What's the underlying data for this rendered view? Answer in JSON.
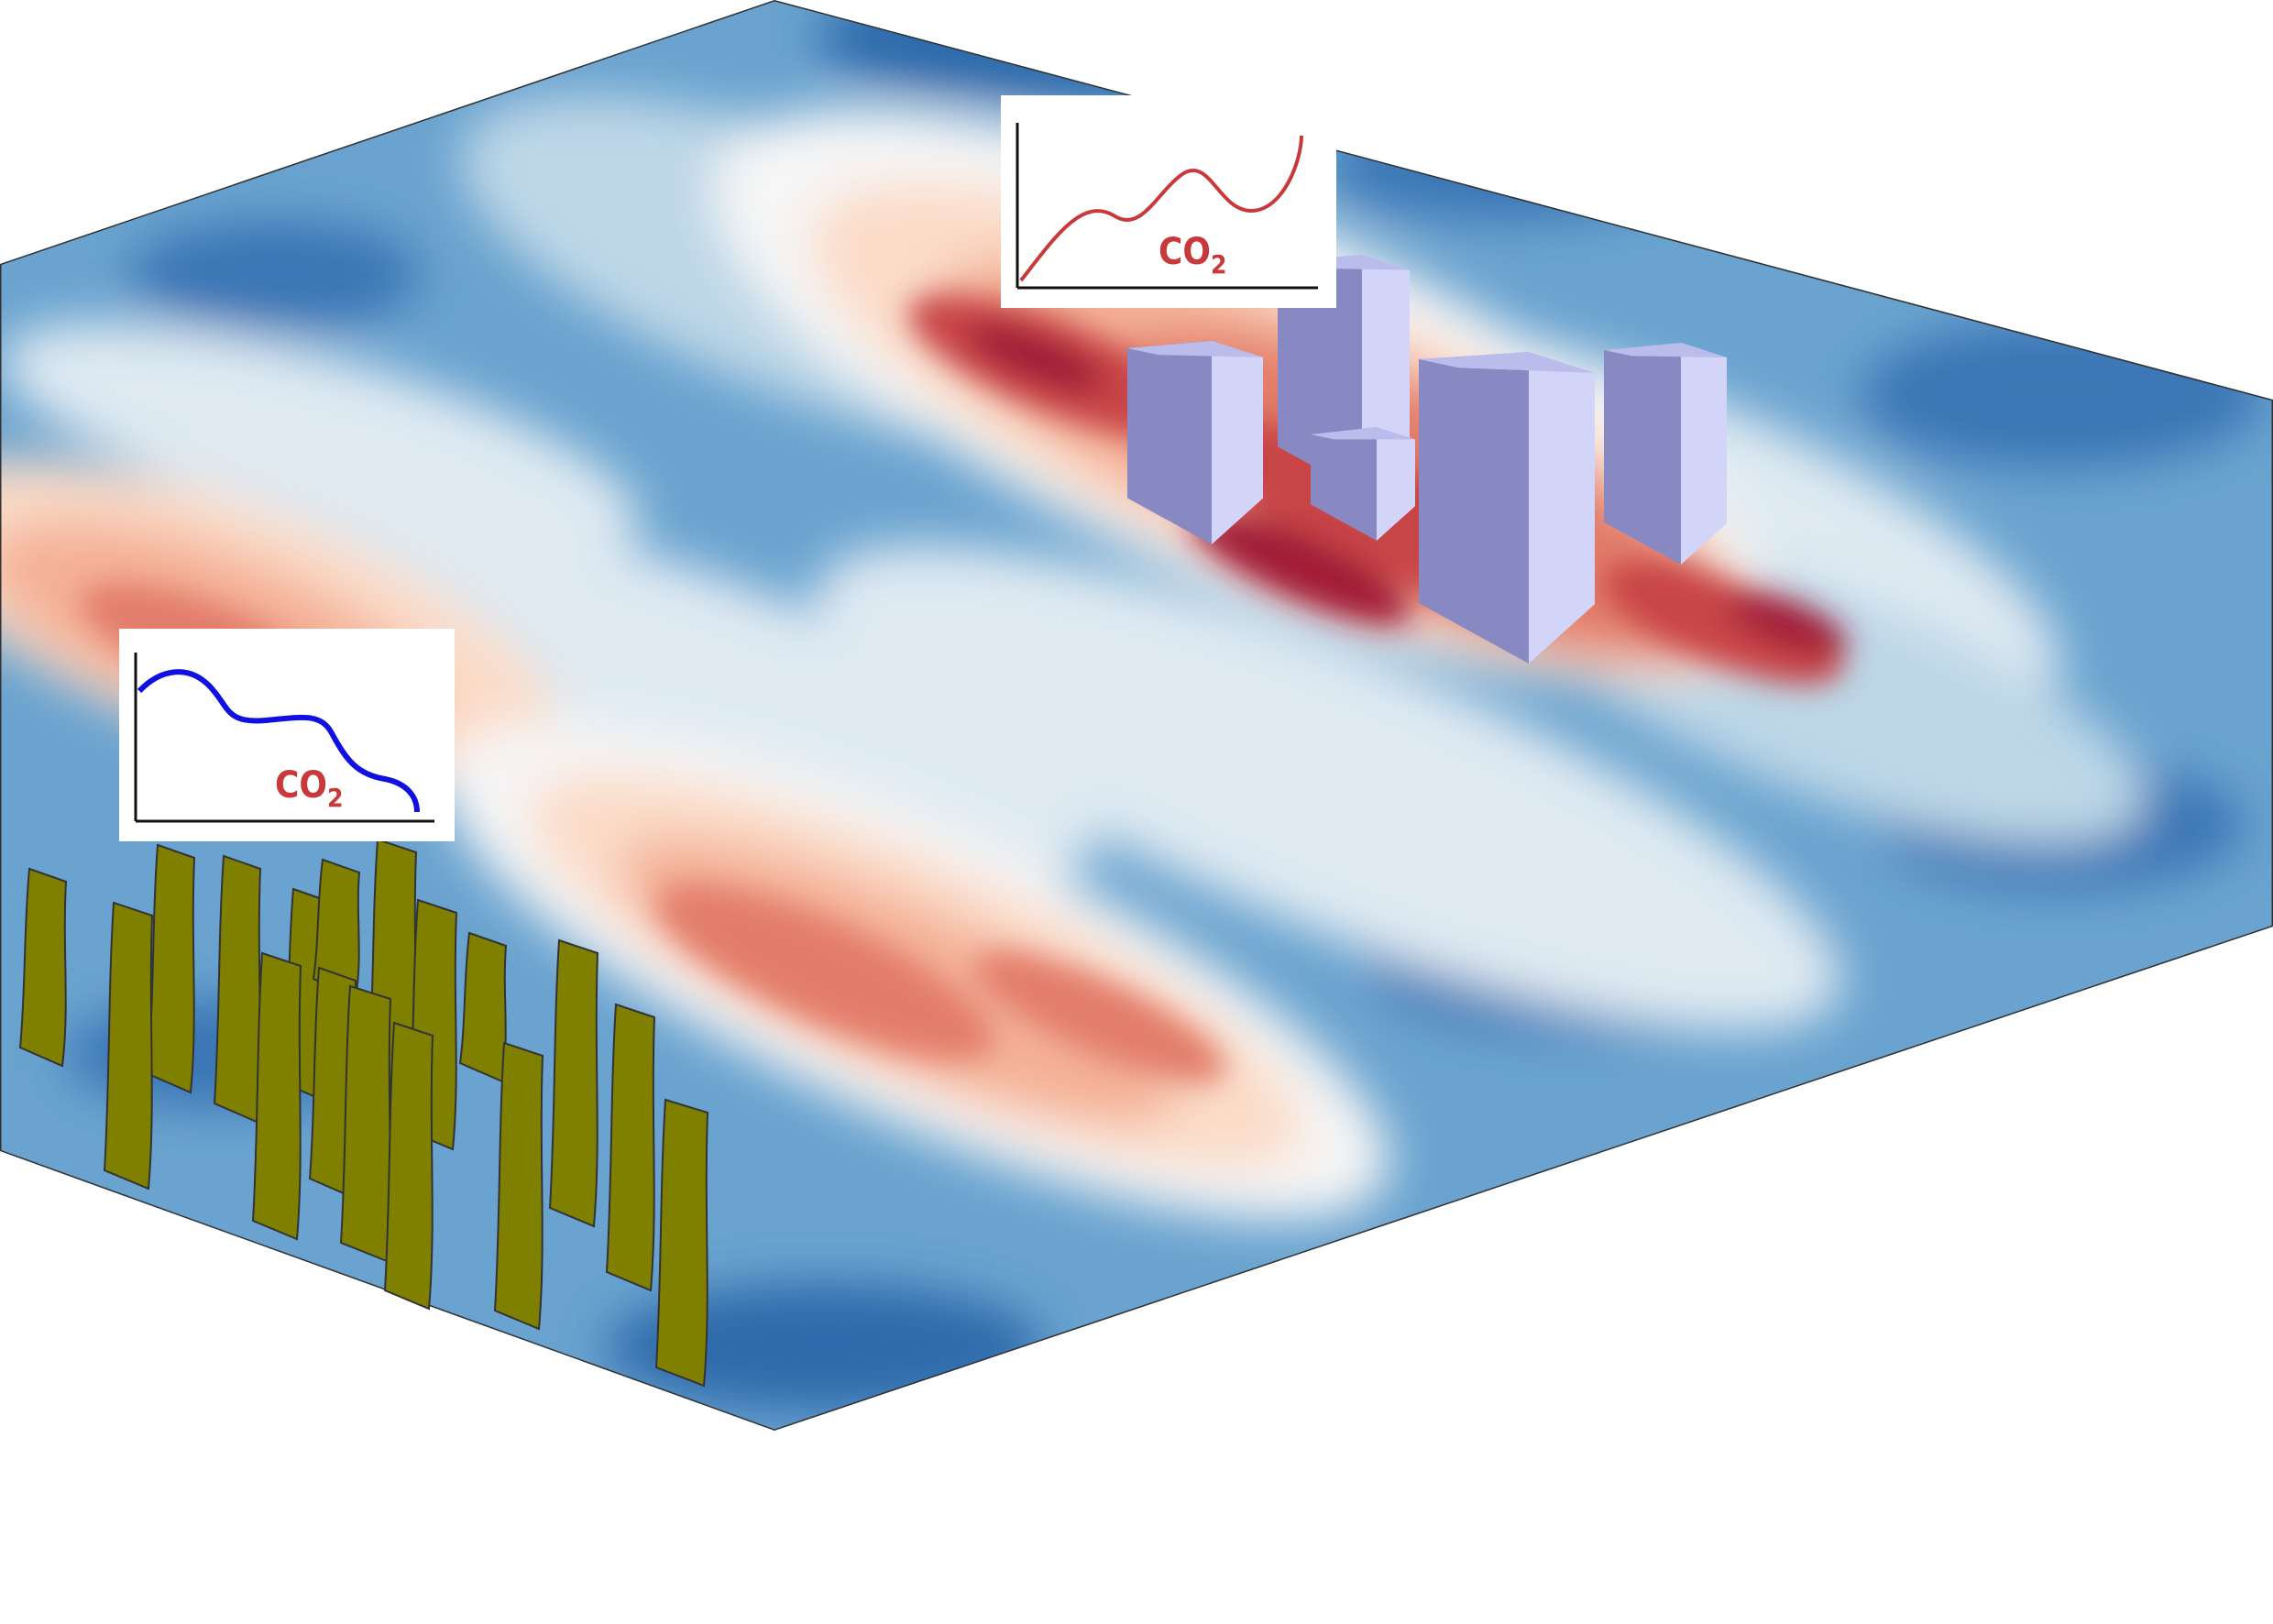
{
  "insets": {
    "city": {
      "label_main": "CO",
      "label_sub": "2",
      "curve_color": "#c8393b",
      "label_color": "#c8393b"
    },
    "forest": {
      "label_main": "CO",
      "label_sub": "2",
      "curve_color": "#1010e0",
      "label_color": "#c8393b"
    }
  },
  "colors": {
    "buildings_front": "#8888c2",
    "buildings_side": "#d2d4f8",
    "buildings_top": "#babcec",
    "trees": "#808000",
    "outline": "#333333",
    "surface_scale": [
      "#08306b",
      "#2c6aaa",
      "#4f8fc4",
      "#89b8d9",
      "#bdd7e7",
      "#dfeaf2",
      "#f6f6f6",
      "#fbdcc8",
      "#f4b197",
      "#e27d6b",
      "#c84446",
      "#a11f37",
      "#6a0f2a"
    ]
  },
  "icons": {
    "buildings": "city-buildings-icon",
    "trees": "forest-trees-icon"
  }
}
